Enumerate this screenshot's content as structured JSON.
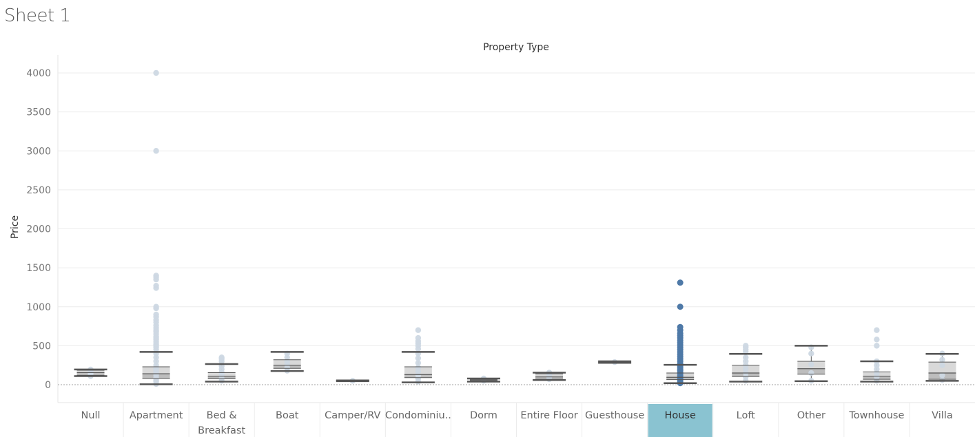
{
  "sheet": {
    "title": "Sheet 1"
  },
  "chart_data": {
    "type": "boxplot",
    "title": "Property Type",
    "xlabel": "Property Type",
    "ylabel": "Price",
    "ylim": [
      -200,
      4200
    ],
    "yticks": [
      0,
      500,
      1000,
      1500,
      2000,
      2500,
      3000,
      3500,
      4000
    ],
    "highlighted_category": "House",
    "colors": {
      "point": "#cdd8e3",
      "point_highlight": "#4e79a7",
      "box_upper": "#d9d9d9",
      "box_lower": "#bdbdbd",
      "whisker": "#555555",
      "selected_bg": "#8ac3d1",
      "gridline": "#ececec"
    },
    "categories": [
      {
        "label": [
          "Null"
        ],
        "min": 110,
        "q1": 120,
        "median": 155,
        "q3": 185,
        "max": 195,
        "outliers": [],
        "points": [
          110,
          140,
          160,
          175,
          195
        ]
      },
      {
        "label": [
          "Apartment"
        ],
        "min": 5,
        "q1": 80,
        "median": 140,
        "q3": 230,
        "max": 420,
        "outliers": [
          450,
          480,
          500,
          520,
          550,
          580,
          600,
          620,
          650,
          680,
          700,
          730,
          760,
          800,
          830,
          870,
          900,
          980,
          1000,
          1240,
          1270,
          1350,
          1380,
          1400,
          3000,
          4000
        ],
        "points": [
          10,
          40,
          60,
          90,
          120,
          150,
          180,
          210,
          250,
          300,
          350,
          400
        ]
      },
      {
        "label": [
          "Bed &",
          "Breakfast"
        ],
        "min": 40,
        "q1": 75,
        "median": 110,
        "q3": 155,
        "max": 265,
        "outliers": [
          300,
          330,
          350
        ],
        "points": [
          50,
          80,
          120,
          160,
          200,
          240
        ]
      },
      {
        "label": [
          "Boat"
        ],
        "min": 175,
        "q1": 210,
        "median": 250,
        "q3": 320,
        "max": 420,
        "outliers": [],
        "points": [
          180,
          220,
          260,
          300,
          350,
          400
        ]
      },
      {
        "label": [
          "Camper/RV"
        ],
        "min": 45,
        "q1": 45,
        "median": 50,
        "q3": 50,
        "max": 55,
        "outliers": [],
        "points": [
          50
        ]
      },
      {
        "label": [
          "Condominiu.."
        ],
        "min": 30,
        "q1": 90,
        "median": 130,
        "q3": 230,
        "max": 420,
        "outliers": [
          460,
          500,
          530,
          560,
          600,
          700
        ],
        "points": [
          40,
          80,
          120,
          170,
          220,
          280,
          340,
          400
        ]
      },
      {
        "label": [
          "Dorm"
        ],
        "min": 40,
        "q1": 50,
        "median": 60,
        "q3": 70,
        "max": 80,
        "outliers": [],
        "points": [
          50,
          65,
          80
        ]
      },
      {
        "label": [
          "Entire Floor"
        ],
        "min": 60,
        "q1": 70,
        "median": 100,
        "q3": 140,
        "max": 155,
        "outliers": [],
        "points": [
          70,
          100,
          130,
          155
        ]
      },
      {
        "label": [
          "Guesthouse"
        ],
        "min": 280,
        "q1": 285,
        "median": 290,
        "q3": 295,
        "max": 300,
        "outliers": [],
        "points": [
          290
        ]
      },
      {
        "label": [
          "House"
        ],
        "min": 20,
        "q1": 65,
        "median": 95,
        "q3": 150,
        "max": 255,
        "outliers": [
          270,
          300,
          330,
          360,
          390,
          420,
          450,
          480,
          510,
          540,
          570,
          600,
          630,
          660,
          700,
          740,
          1000,
          1310
        ],
        "points": [
          20,
          40,
          60,
          80,
          100,
          120,
          140,
          160,
          180,
          200,
          220,
          240
        ]
      },
      {
        "label": [
          "Loft"
        ],
        "min": 40,
        "q1": 105,
        "median": 150,
        "q3": 250,
        "max": 395,
        "outliers": [
          420,
          450,
          480,
          500
        ],
        "points": [
          50,
          100,
          150,
          200,
          250,
          300,
          350
        ]
      },
      {
        "label": [
          "Other"
        ],
        "min": 45,
        "q1": 135,
        "median": 205,
        "q3": 300,
        "max": 500,
        "outliers": [],
        "points": [
          50,
          150,
          260,
          400,
          480
        ]
      },
      {
        "label": [
          "Townhouse"
        ],
        "min": 40,
        "q1": 70,
        "median": 110,
        "q3": 165,
        "max": 300,
        "outliers": [
          500,
          580,
          700
        ],
        "points": [
          50,
          100,
          150,
          200,
          250,
          300
        ]
      },
      {
        "label": [
          "Villa"
        ],
        "min": 50,
        "q1": 70,
        "median": 150,
        "q3": 290,
        "max": 395,
        "outliers": [],
        "points": [
          60,
          120,
          250,
          320,
          400
        ]
      }
    ]
  }
}
